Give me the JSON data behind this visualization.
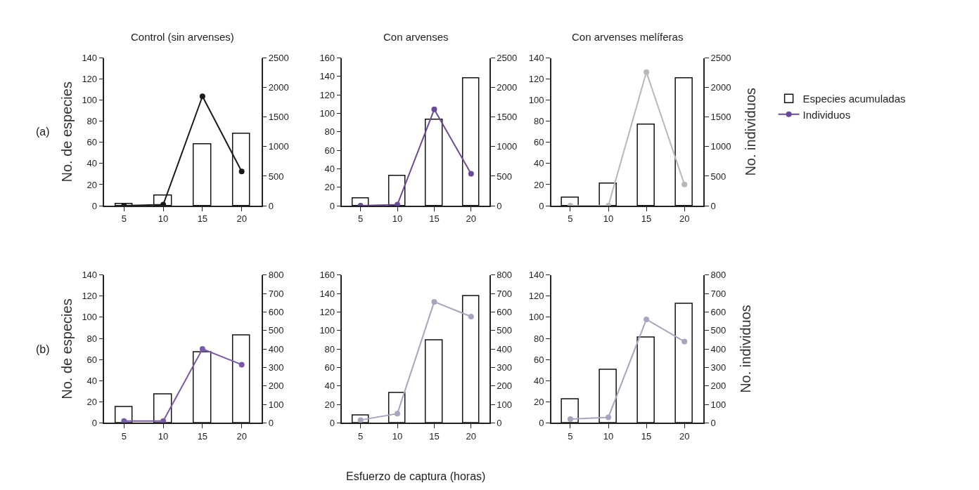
{
  "chart_data": [
    {
      "type": "bar",
      "title": "Control (sin arvenses)",
      "ylabel": "No. de especies",
      "annotations": [
        "(a)"
      ],
      "x": [
        5,
        10,
        15,
        20
      ],
      "xlim": [
        2.5,
        22.5
      ],
      "xticks": [
        5,
        10,
        15,
        20
      ],
      "ylim": [
        0,
        140
      ],
      "yticks": [
        0,
        20,
        40,
        60,
        80,
        100,
        120,
        140
      ],
      "y2lim": [
        0,
        2500
      ],
      "y2ticks": [
        0,
        500,
        1000,
        1500,
        2000,
        2500
      ],
      "marker": "circle",
      "series": [
        {
          "color": "#ffffff",
          "values": [
            2,
            10,
            58,
            68
          ]
        },
        {
          "type": "line",
          "axis": "y2",
          "color": "#1a1a1a",
          "values": [
            0,
            20,
            1850,
            580
          ]
        }
      ]
    },
    {
      "type": "bar",
      "title": "Con arvenses",
      "x": [
        5,
        10,
        15,
        20
      ],
      "xlim": [
        2.5,
        22.5
      ],
      "xticks": [
        5,
        10,
        15,
        20
      ],
      "ylim": [
        0,
        160
      ],
      "yticks": [
        0,
        20,
        40,
        60,
        80,
        100,
        120,
        140,
        160
      ],
      "y2lim": [
        0,
        2500
      ],
      "y2ticks": [
        0,
        500,
        1000,
        1500,
        2000,
        2500
      ],
      "marker": "circle",
      "legend": "right",
      "series": [
        {
          "name": "Especies acumuladas",
          "color": "#ffffff",
          "values": [
            8,
            32,
            93,
            138
          ]
        },
        {
          "type": "line",
          "name": "Individuos",
          "axis": "y2",
          "color": "#6a4a9a",
          "values": [
            0,
            20,
            1630,
            540
          ]
        }
      ]
    },
    {
      "type": "bar",
      "title": "Con arvenses melíferas",
      "y2label": "No. individuos",
      "x": [
        5,
        10,
        15,
        20
      ],
      "xlim": [
        2.5,
        22.5
      ],
      "xticks": [
        5,
        10,
        15,
        20
      ],
      "ylim": [
        0,
        140
      ],
      "yticks": [
        0,
        20,
        40,
        60,
        80,
        100,
        120,
        140
      ],
      "y2lim": [
        0,
        2500
      ],
      "y2ticks": [
        0,
        500,
        1000,
        1500,
        2000,
        2500
      ],
      "marker": "circle",
      "series": [
        {
          "color": "#ffffff",
          "values": [
            8,
            21,
            77,
            121
          ]
        },
        {
          "type": "line",
          "axis": "y2",
          "color": "#b8b8b8",
          "values": [
            0,
            0,
            2260,
            360
          ]
        }
      ]
    },
    {
      "type": "bar",
      "ylabel": "No. de especies",
      "annotations": [
        "(b)"
      ],
      "x": [
        5,
        10,
        15,
        20
      ],
      "xlim": [
        2.5,
        22.5
      ],
      "xticks": [
        5,
        10,
        15,
        20
      ],
      "ylim": [
        0,
        140
      ],
      "yticks": [
        0,
        20,
        40,
        60,
        80,
        100,
        120,
        140
      ],
      "y2lim": [
        0,
        800
      ],
      "y2ticks": [
        0,
        100,
        200,
        300,
        400,
        500,
        600,
        700,
        800
      ],
      "marker": "circle",
      "series": [
        {
          "color": "#ffffff",
          "values": [
            15,
            27,
            67,
            83
          ]
        },
        {
          "type": "line",
          "axis": "y2",
          "color": "#7a5aa8",
          "values": [
            10,
            10,
            400,
            315
          ]
        }
      ]
    },
    {
      "type": "bar",
      "xlabel": "Esfuerzo de captura (horas)",
      "x": [
        5,
        10,
        15,
        20
      ],
      "xlim": [
        2.5,
        22.5
      ],
      "xticks": [
        5,
        10,
        15,
        20
      ],
      "ylim": [
        0,
        160
      ],
      "yticks": [
        0,
        20,
        40,
        60,
        80,
        100,
        120,
        140,
        160
      ],
      "y2lim": [
        0,
        800
      ],
      "y2ticks": [
        0,
        100,
        200,
        300,
        400,
        500,
        600,
        700,
        800
      ],
      "marker": "circle",
      "series": [
        {
          "color": "#ffffff",
          "values": [
            8,
            32,
            89,
            137
          ]
        },
        {
          "type": "line",
          "axis": "y2",
          "color": "#a8a4c0",
          "values": [
            15,
            50,
            655,
            575
          ]
        }
      ]
    },
    {
      "type": "bar",
      "y2label": "No. individuos",
      "x": [
        5,
        10,
        15,
        20
      ],
      "xlim": [
        2.5,
        22.5
      ],
      "xticks": [
        5,
        10,
        15,
        20
      ],
      "ylim": [
        0,
        140
      ],
      "yticks": [
        0,
        20,
        40,
        60,
        80,
        100,
        120,
        140
      ],
      "y2lim": [
        0,
        800
      ],
      "y2ticks": [
        0,
        100,
        200,
        300,
        400,
        500,
        600,
        700,
        800
      ],
      "marker": "circle",
      "series": [
        {
          "color": "#ffffff",
          "values": [
            22,
            50,
            81,
            113
          ]
        },
        {
          "type": "line",
          "axis": "y2",
          "color": "#a8a4c0",
          "values": [
            20,
            30,
            560,
            440
          ]
        }
      ]
    }
  ]
}
